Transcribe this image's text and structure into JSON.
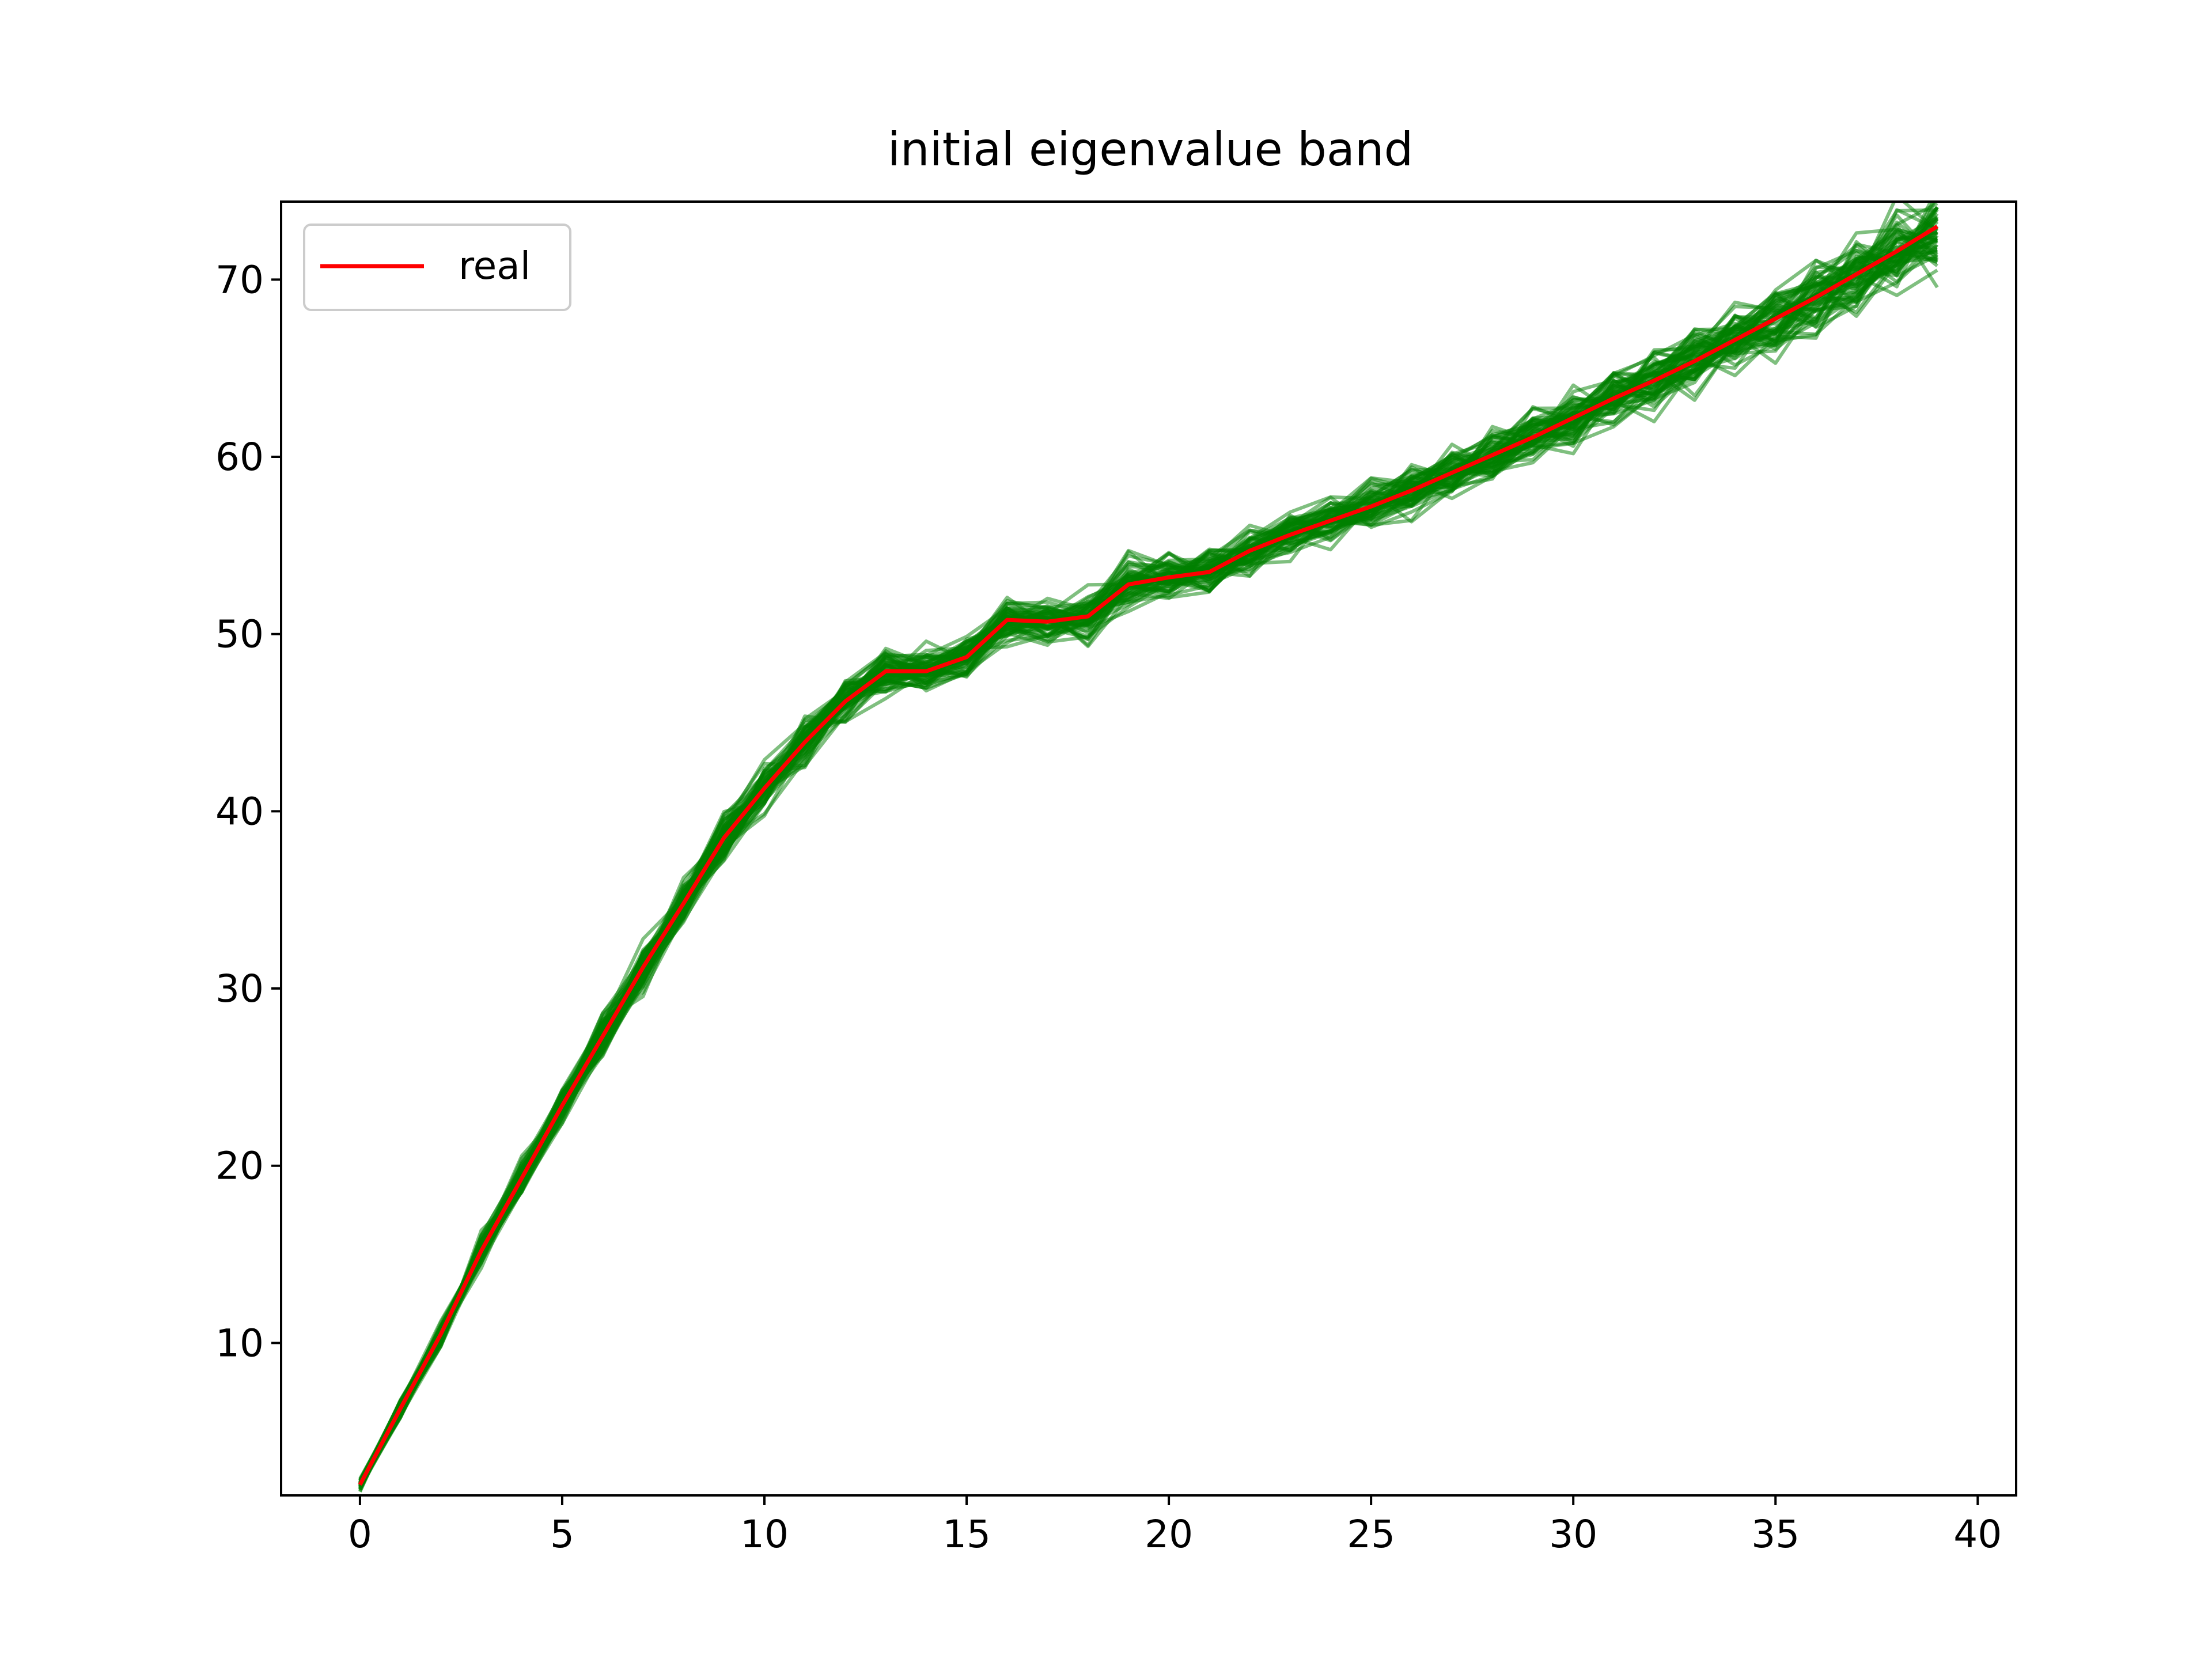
{
  "chart_data": {
    "type": "line",
    "title": "initial eigenvalue band",
    "xlabel": "",
    "ylabel": "",
    "xlim": [
      -1.95,
      40.95
    ],
    "ylim": [
      1.4,
      74.4
    ],
    "xticks": [
      0,
      5,
      10,
      15,
      20,
      25,
      30,
      35,
      40
    ],
    "yticks": [
      10,
      20,
      30,
      40,
      50,
      60,
      70
    ],
    "xtick_labels": [
      "0",
      "5",
      "10",
      "15",
      "20",
      "25",
      "30",
      "35",
      "40"
    ],
    "ytick_labels": [
      "10",
      "20",
      "30",
      "40",
      "50",
      "60",
      "70"
    ],
    "grid": false,
    "legend": {
      "location": "upper-left",
      "entries": [
        "real"
      ]
    },
    "colors": {
      "real": "#ff0000",
      "band": "#008000"
    },
    "band_opacity": 0.5,
    "x": [
      0,
      1,
      2,
      3,
      4,
      5,
      6,
      7,
      8,
      9,
      10,
      11,
      12,
      13,
      14,
      15,
      16,
      17,
      18,
      19,
      20,
      21,
      22,
      23,
      24,
      25,
      26,
      27,
      28,
      29,
      30,
      31,
      32,
      33,
      34,
      35,
      36,
      37,
      38,
      39
    ],
    "series": [
      {
        "name": "real",
        "values": [
          2.0,
          6.3,
          10.5,
          15.2,
          19.3,
          23.4,
          27.3,
          31.2,
          34.8,
          38.5,
          41.3,
          43.9,
          46.2,
          47.9,
          47.9,
          48.7,
          50.8,
          50.7,
          51.0,
          52.8,
          53.2,
          53.5,
          54.7,
          55.6,
          56.4,
          57.2,
          58.1,
          59.1,
          60.1,
          61.1,
          62.2,
          63.3,
          64.3,
          65.4,
          66.6,
          67.8,
          69.0,
          70.3,
          71.6,
          73.0
        ]
      }
    ],
    "band": {
      "label": "",
      "spread": [
        0.3,
        0.5,
        0.7,
        0.9,
        1.0,
        1.1,
        1.2,
        1.3,
        1.3,
        1.4,
        1.3,
        1.3,
        1.3,
        1.2,
        1.2,
        1.3,
        1.3,
        1.3,
        1.3,
        1.3,
        1.3,
        1.3,
        1.3,
        1.3,
        1.3,
        1.3,
        1.4,
        1.4,
        1.5,
        1.5,
        1.6,
        1.6,
        1.7,
        1.8,
        1.9,
        2.0,
        2.1,
        2.2,
        2.4,
        2.6
      ]
    }
  }
}
